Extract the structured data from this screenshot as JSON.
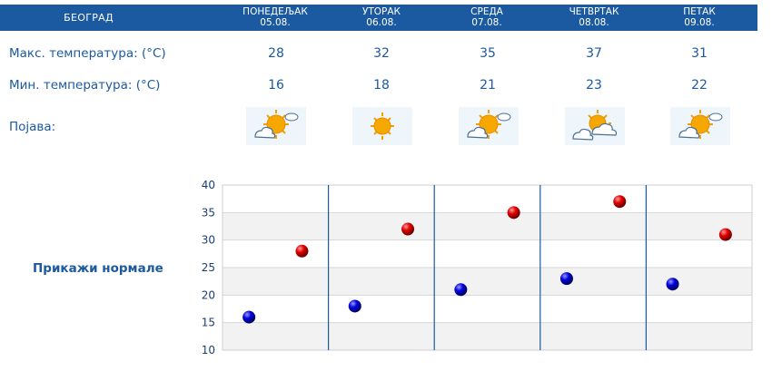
{
  "header": {
    "city": "БЕОГРАД",
    "days": [
      {
        "name": "ПОНЕДЕЉАК",
        "date": "05.08."
      },
      {
        "name": "УТОРАК",
        "date": "06.08."
      },
      {
        "name": "СРЕДА",
        "date": "07.08."
      },
      {
        "name": "ЧЕТВРТАК",
        "date": "08.08."
      },
      {
        "name": "ПЕТАК",
        "date": "09.08."
      }
    ]
  },
  "rows": {
    "max_label": "Макс. температура: (°C)",
    "min_label": "Мин. температура: (°C)",
    "weather_label": "Појава:"
  },
  "weather_icons": [
    "sun-cloud-icon",
    "sun-icon",
    "sun-cloud-icon",
    "sun-behind-clouds-icon",
    "sun-cloud-icon"
  ],
  "normals_link": "Прикажи нормале",
  "colors": {
    "header_bg": "#1b5aa0",
    "text": "#1b5aa0",
    "max_marker": "#cc0000",
    "min_marker": "#0000bb",
    "band": "#f2f2f2"
  },
  "chart_data": {
    "type": "scatter",
    "categories": [
      "05.08.",
      "06.08.",
      "07.08.",
      "08.08.",
      "09.08."
    ],
    "series": [
      {
        "values": [
          28,
          32,
          35,
          37,
          31
        ],
        "color": "#cc0000"
      },
      {
        "values": [
          16,
          18,
          21,
          23,
          22
        ],
        "color": "#0000bb"
      }
    ],
    "ylim": [
      10,
      40
    ],
    "yticks": [
      10,
      15,
      20,
      25,
      30,
      35,
      40
    ],
    "grid": true
  }
}
